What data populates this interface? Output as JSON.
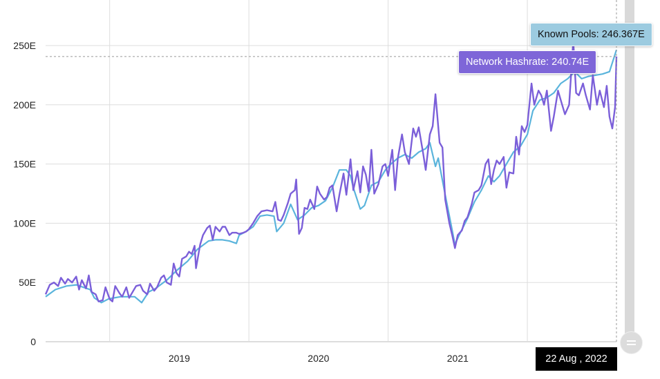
{
  "chart_data": {
    "type": "line",
    "title": "",
    "xlabel": "",
    "ylabel": "",
    "xlim": [
      2018.54,
      2022.64
    ],
    "ylim": [
      0,
      250
    ],
    "x_ticks": [
      {
        "value": 2019.5,
        "label": "2019"
      },
      {
        "value": 2020.5,
        "label": "2020"
      },
      {
        "value": 2021.5,
        "label": "2021"
      }
    ],
    "y_ticks": [
      {
        "value": 0,
        "label": "0"
      },
      {
        "value": 50,
        "label": "50E"
      },
      {
        "value": 100,
        "label": "100E"
      },
      {
        "value": 150,
        "label": "150E"
      },
      {
        "value": 200,
        "label": "200E"
      },
      {
        "value": 250,
        "label": "250E"
      }
    ],
    "grid": true,
    "series": [
      {
        "name": "Known Pools",
        "color": "#5ab4dc",
        "points": [
          [
            2018.54,
            38
          ],
          [
            2018.61,
            44
          ],
          [
            2018.69,
            47
          ],
          [
            2018.76,
            48
          ],
          [
            2018.81,
            46
          ],
          [
            2018.86,
            44
          ],
          [
            2018.89,
            37
          ],
          [
            2018.94,
            33
          ],
          [
            2018.99,
            36
          ],
          [
            2019.03,
            37
          ],
          [
            2019.08,
            38
          ],
          [
            2019.13,
            38
          ],
          [
            2019.18,
            38
          ],
          [
            2019.23,
            33
          ],
          [
            2019.28,
            42
          ],
          [
            2019.33,
            45
          ],
          [
            2019.41,
            52
          ],
          [
            2019.48,
            60
          ],
          [
            2019.56,
            68
          ],
          [
            2019.63,
            78
          ],
          [
            2019.71,
            85
          ],
          [
            2019.76,
            86
          ],
          [
            2019.81,
            86
          ],
          [
            2019.86,
            85
          ],
          [
            2019.91,
            83
          ],
          [
            2019.93,
            90
          ],
          [
            2019.98,
            93
          ],
          [
            2020.03,
            97
          ],
          [
            2020.08,
            106
          ],
          [
            2020.13,
            107
          ],
          [
            2020.18,
            106
          ],
          [
            2020.2,
            93
          ],
          [
            2020.25,
            100
          ],
          [
            2020.3,
            116
          ],
          [
            2020.35,
            103
          ],
          [
            2020.4,
            107
          ],
          [
            2020.45,
            113
          ],
          [
            2020.5,
            115
          ],
          [
            2020.55,
            119
          ],
          [
            2020.6,
            130
          ],
          [
            2020.65,
            145
          ],
          [
            2020.7,
            145
          ],
          [
            2020.73,
            140
          ],
          [
            2020.75,
            130
          ],
          [
            2020.8,
            112
          ],
          [
            2020.83,
            115
          ],
          [
            2020.88,
            132
          ],
          [
            2020.93,
            135
          ],
          [
            2020.98,
            145
          ],
          [
            2021.02,
            150
          ],
          [
            2021.07,
            155
          ],
          [
            2021.12,
            158
          ],
          [
            2021.17,
            155
          ],
          [
            2021.22,
            160
          ],
          [
            2021.27,
            163
          ],
          [
            2021.3,
            168
          ],
          [
            2021.34,
            148
          ],
          [
            2021.36,
            155
          ],
          [
            2021.4,
            130
          ],
          [
            2021.42,
            118
          ],
          [
            2021.45,
            100
          ],
          [
            2021.48,
            82
          ],
          [
            2021.51,
            90
          ],
          [
            2021.57,
            104
          ],
          [
            2021.62,
            118
          ],
          [
            2021.67,
            128
          ],
          [
            2021.72,
            140
          ],
          [
            2021.76,
            135
          ],
          [
            2021.8,
            140
          ],
          [
            2021.85,
            150
          ],
          [
            2021.9,
            160
          ],
          [
            2021.95,
            165
          ],
          [
            2022.0,
            175
          ],
          [
            2022.04,
            195
          ],
          [
            2022.09,
            204
          ],
          [
            2022.14,
            206
          ],
          [
            2022.19,
            210
          ],
          [
            2022.24,
            218
          ],
          [
            2022.29,
            222
          ],
          [
            2022.34,
            228
          ],
          [
            2022.39,
            222
          ],
          [
            2022.44,
            224
          ],
          [
            2022.49,
            225
          ],
          [
            2022.54,
            226
          ],
          [
            2022.59,
            228
          ],
          [
            2022.64,
            246.367
          ]
        ]
      },
      {
        "name": "Network Hashrate",
        "color": "#7b5fd9",
        "points": [
          [
            2018.54,
            40
          ],
          [
            2018.57,
            48
          ],
          [
            2018.6,
            50
          ],
          [
            2018.63,
            47
          ],
          [
            2018.65,
            54
          ],
          [
            2018.68,
            49
          ],
          [
            2018.7,
            53
          ],
          [
            2018.73,
            50
          ],
          [
            2018.76,
            55
          ],
          [
            2018.78,
            44
          ],
          [
            2018.8,
            52
          ],
          [
            2018.83,
            45
          ],
          [
            2018.85,
            56
          ],
          [
            2018.87,
            42
          ],
          [
            2018.9,
            40
          ],
          [
            2018.92,
            34
          ],
          [
            2018.95,
            35
          ],
          [
            2018.97,
            46
          ],
          [
            2019.0,
            36
          ],
          [
            2019.02,
            34
          ],
          [
            2019.04,
            47
          ],
          [
            2019.07,
            41
          ],
          [
            2019.09,
            38
          ],
          [
            2019.12,
            46
          ],
          [
            2019.14,
            37
          ],
          [
            2019.17,
            43
          ],
          [
            2019.19,
            47
          ],
          [
            2019.22,
            48
          ],
          [
            2019.24,
            43
          ],
          [
            2019.27,
            40
          ],
          [
            2019.29,
            49
          ],
          [
            2019.32,
            43
          ],
          [
            2019.34,
            46
          ],
          [
            2019.37,
            54
          ],
          [
            2019.39,
            56
          ],
          [
            2019.41,
            50
          ],
          [
            2019.44,
            48
          ],
          [
            2019.46,
            66
          ],
          [
            2019.48,
            58
          ],
          [
            2019.5,
            55
          ],
          [
            2019.52,
            70
          ],
          [
            2019.55,
            72
          ],
          [
            2019.57,
            76
          ],
          [
            2019.59,
            74
          ],
          [
            2019.61,
            81
          ],
          [
            2019.62,
            62
          ],
          [
            2019.65,
            82
          ],
          [
            2019.67,
            90
          ],
          [
            2019.7,
            96
          ],
          [
            2019.72,
            98
          ],
          [
            2019.74,
            86
          ],
          [
            2019.76,
            97
          ],
          [
            2019.79,
            93
          ],
          [
            2019.81,
            97
          ],
          [
            2019.83,
            97
          ],
          [
            2019.86,
            90
          ],
          [
            2019.88,
            92
          ],
          [
            2019.91,
            92
          ],
          [
            2019.93,
            91
          ],
          [
            2019.96,
            92
          ],
          [
            2019.98,
            93
          ],
          [
            2020.0,
            95
          ],
          [
            2020.03,
            100
          ],
          [
            2020.06,
            106
          ],
          [
            2020.09,
            110
          ],
          [
            2020.13,
            111
          ],
          [
            2020.17,
            110
          ],
          [
            2020.19,
            118
          ],
          [
            2020.21,
            103
          ],
          [
            2020.23,
            102
          ],
          [
            2020.25,
            107
          ],
          [
            2020.28,
            117
          ],
          [
            2020.3,
            125
          ],
          [
            2020.33,
            128
          ],
          [
            2020.34,
            137
          ],
          [
            2020.36,
            91
          ],
          [
            2020.38,
            96
          ],
          [
            2020.4,
            113
          ],
          [
            2020.42,
            112
          ],
          [
            2020.44,
            120
          ],
          [
            2020.47,
            112
          ],
          [
            2020.49,
            131
          ],
          [
            2020.51,
            125
          ],
          [
            2020.54,
            120
          ],
          [
            2020.56,
            122
          ],
          [
            2020.58,
            130
          ],
          [
            2020.6,
            132
          ],
          [
            2020.63,
            110
          ],
          [
            2020.65,
            124
          ],
          [
            2020.68,
            142
          ],
          [
            2020.7,
            124
          ],
          [
            2020.73,
            154
          ],
          [
            2020.75,
            128
          ],
          [
            2020.78,
            144
          ],
          [
            2020.8,
            126
          ],
          [
            2020.82,
            148
          ],
          [
            2020.84,
            141
          ],
          [
            2020.86,
            127
          ],
          [
            2020.88,
            162
          ],
          [
            2020.9,
            125
          ],
          [
            2020.93,
            133
          ],
          [
            2020.96,
            148
          ],
          [
            2020.98,
            150
          ],
          [
            2021.0,
            140
          ],
          [
            2021.03,
            162
          ],
          [
            2021.05,
            128
          ],
          [
            2021.07,
            155
          ],
          [
            2021.1,
            175
          ],
          [
            2021.12,
            160
          ],
          [
            2021.15,
            150
          ],
          [
            2021.18,
            180
          ],
          [
            2021.2,
            173
          ],
          [
            2021.22,
            181
          ],
          [
            2021.25,
            160
          ],
          [
            2021.27,
            145
          ],
          [
            2021.3,
            175
          ],
          [
            2021.32,
            182
          ],
          [
            2021.34,
            209
          ],
          [
            2021.37,
            168
          ],
          [
            2021.39,
            164
          ],
          [
            2021.41,
            120
          ],
          [
            2021.44,
            100
          ],
          [
            2021.46,
            90
          ],
          [
            2021.48,
            79
          ],
          [
            2021.5,
            90
          ],
          [
            2021.53,
            94
          ],
          [
            2021.55,
            102
          ],
          [
            2021.57,
            105
          ],
          [
            2021.6,
            116
          ],
          [
            2021.62,
            126
          ],
          [
            2021.65,
            128
          ],
          [
            2021.67,
            132
          ],
          [
            2021.7,
            150
          ],
          [
            2021.72,
            154
          ],
          [
            2021.74,
            133
          ],
          [
            2021.76,
            145
          ],
          [
            2021.78,
            153
          ],
          [
            2021.8,
            150
          ],
          [
            2021.83,
            156
          ],
          [
            2021.85,
            130
          ],
          [
            2021.87,
            143
          ],
          [
            2021.9,
            142
          ],
          [
            2021.92,
            173
          ],
          [
            2021.94,
            158
          ],
          [
            2021.96,
            182
          ],
          [
            2021.98,
            177
          ],
          [
            2022.0,
            183
          ],
          [
            2022.03,
            218
          ],
          [
            2022.05,
            200
          ],
          [
            2022.08,
            212
          ],
          [
            2022.1,
            208
          ],
          [
            2022.12,
            200
          ],
          [
            2022.14,
            212
          ],
          [
            2022.17,
            178
          ],
          [
            2022.19,
            190
          ],
          [
            2022.22,
            212
          ],
          [
            2022.25,
            200
          ],
          [
            2022.27,
            192
          ],
          [
            2022.3,
            200
          ],
          [
            2022.33,
            254
          ],
          [
            2022.35,
            210
          ],
          [
            2022.37,
            208
          ],
          [
            2022.4,
            218
          ],
          [
            2022.42,
            208
          ],
          [
            2022.45,
            196
          ],
          [
            2022.47,
            225
          ],
          [
            2022.5,
            200
          ],
          [
            2022.52,
            212
          ],
          [
            2022.55,
            198
          ],
          [
            2022.57,
            216
          ],
          [
            2022.59,
            190
          ],
          [
            2022.61,
            180
          ],
          [
            2022.63,
            198
          ],
          [
            2022.64,
            240.74
          ]
        ]
      }
    ],
    "crosshair": {
      "date": "22 Aug , 2022",
      "value": 240.74
    },
    "tooltips": {
      "known_pools": "Known Pools: 246.367E",
      "network_hashrate": "Network Hashrate: 240.74E",
      "date": "22 Aug , 2022"
    },
    "colors": {
      "grid": "#dddddd",
      "tooltip_pools_bg": "#9ccbe0",
      "tooltip_hash_bg": "#7e66d8"
    }
  }
}
